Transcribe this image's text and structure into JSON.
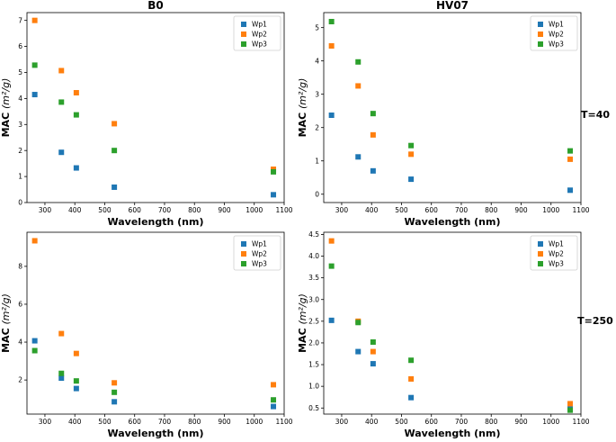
{
  "row_labels": [
    "T=40",
    "T=250"
  ],
  "chart_data": [
    {
      "type": "scatter",
      "title": "B0",
      "xlabel": "Wavelength (nm)",
      "ylabel": "MAC (m²/g)",
      "xlim": [
        240,
        1100
      ],
      "ylim": [
        0,
        7.3
      ],
      "xticks": [
        300,
        400,
        500,
        600,
        700,
        800,
        900,
        1000,
        1100
      ],
      "yticks": [
        0,
        1,
        2,
        3,
        4,
        5,
        6,
        7
      ],
      "x": [
        266,
        355,
        405,
        532,
        1064
      ],
      "legend_position": "top-right",
      "series": [
        {
          "name": "Wp1",
          "color": "#1f77b4",
          "values": [
            4.15,
            1.93,
            1.33,
            0.59,
            0.3
          ]
        },
        {
          "name": "Wp2",
          "color": "#ff7f0e",
          "values": [
            7.0,
            5.07,
            4.22,
            3.03,
            1.28
          ]
        },
        {
          "name": "Wp3",
          "color": "#2ca02c",
          "values": [
            5.28,
            3.86,
            3.37,
            2.0,
            1.18
          ]
        }
      ]
    },
    {
      "type": "scatter",
      "title": "HV07",
      "xlabel": "Wavelength (nm)",
      "ylabel": "MAC (m²/g)",
      "xlim": [
        240,
        1100
      ],
      "ylim": [
        -0.25,
        5.45
      ],
      "xticks": [
        300,
        400,
        500,
        600,
        700,
        800,
        900,
        1000,
        1100
      ],
      "yticks": [
        0,
        1,
        2,
        3,
        4,
        5
      ],
      "x": [
        266,
        355,
        405,
        532,
        1064
      ],
      "legend_position": "top-right",
      "series": [
        {
          "name": "Wp1",
          "color": "#1f77b4",
          "values": [
            2.37,
            1.12,
            0.7,
            0.45,
            0.12
          ]
        },
        {
          "name": "Wp2",
          "color": "#ff7f0e",
          "values": [
            4.45,
            3.25,
            1.78,
            1.2,
            1.05
          ]
        },
        {
          "name": "Wp3",
          "color": "#2ca02c",
          "values": [
            5.18,
            3.97,
            2.42,
            1.46,
            1.3
          ]
        }
      ]
    },
    {
      "type": "scatter",
      "title": "",
      "xlabel": "Wavelength (nm)",
      "ylabel": "MAC (m²/g)",
      "xlim": [
        240,
        1100
      ],
      "ylim": [
        0.2,
        9.8
      ],
      "xticks": [
        300,
        400,
        500,
        600,
        700,
        800,
        900,
        1000,
        1100
      ],
      "yticks": [
        2,
        4,
        6,
        8
      ],
      "x": [
        266,
        355,
        405,
        532,
        1064
      ],
      "legend_position": "top-right",
      "series": [
        {
          "name": "Wp1",
          "color": "#1f77b4",
          "values": [
            4.07,
            2.1,
            1.55,
            0.85,
            0.6
          ]
        },
        {
          "name": "Wp2",
          "color": "#ff7f0e",
          "values": [
            9.35,
            4.45,
            3.4,
            1.85,
            1.75
          ]
        },
        {
          "name": "Wp3",
          "color": "#2ca02c",
          "values": [
            3.55,
            2.35,
            1.95,
            1.35,
            0.95
          ]
        }
      ]
    },
    {
      "type": "scatter",
      "title": "",
      "xlabel": "Wavelength (nm)",
      "ylabel": "MAC (m²/g)",
      "xlim": [
        240,
        1100
      ],
      "ylim": [
        0.36,
        4.55
      ],
      "xticks": [
        300,
        400,
        500,
        600,
        700,
        800,
        900,
        1000,
        1100
      ],
      "yticks": [
        0.5,
        1.0,
        1.5,
        2.0,
        2.5,
        3.0,
        3.5,
        4.0,
        4.5
      ],
      "x": [
        266,
        355,
        405,
        532,
        1064
      ],
      "legend_position": "top-right",
      "series": [
        {
          "name": "Wp1",
          "color": "#1f77b4",
          "values": [
            2.52,
            1.8,
            1.52,
            0.74,
            0.48
          ]
        },
        {
          "name": "Wp2",
          "color": "#ff7f0e",
          "values": [
            4.35,
            2.5,
            1.8,
            1.17,
            0.6
          ]
        },
        {
          "name": "Wp3",
          "color": "#2ca02c",
          "values": [
            3.77,
            2.47,
            2.02,
            1.6,
            0.45
          ]
        }
      ]
    }
  ]
}
